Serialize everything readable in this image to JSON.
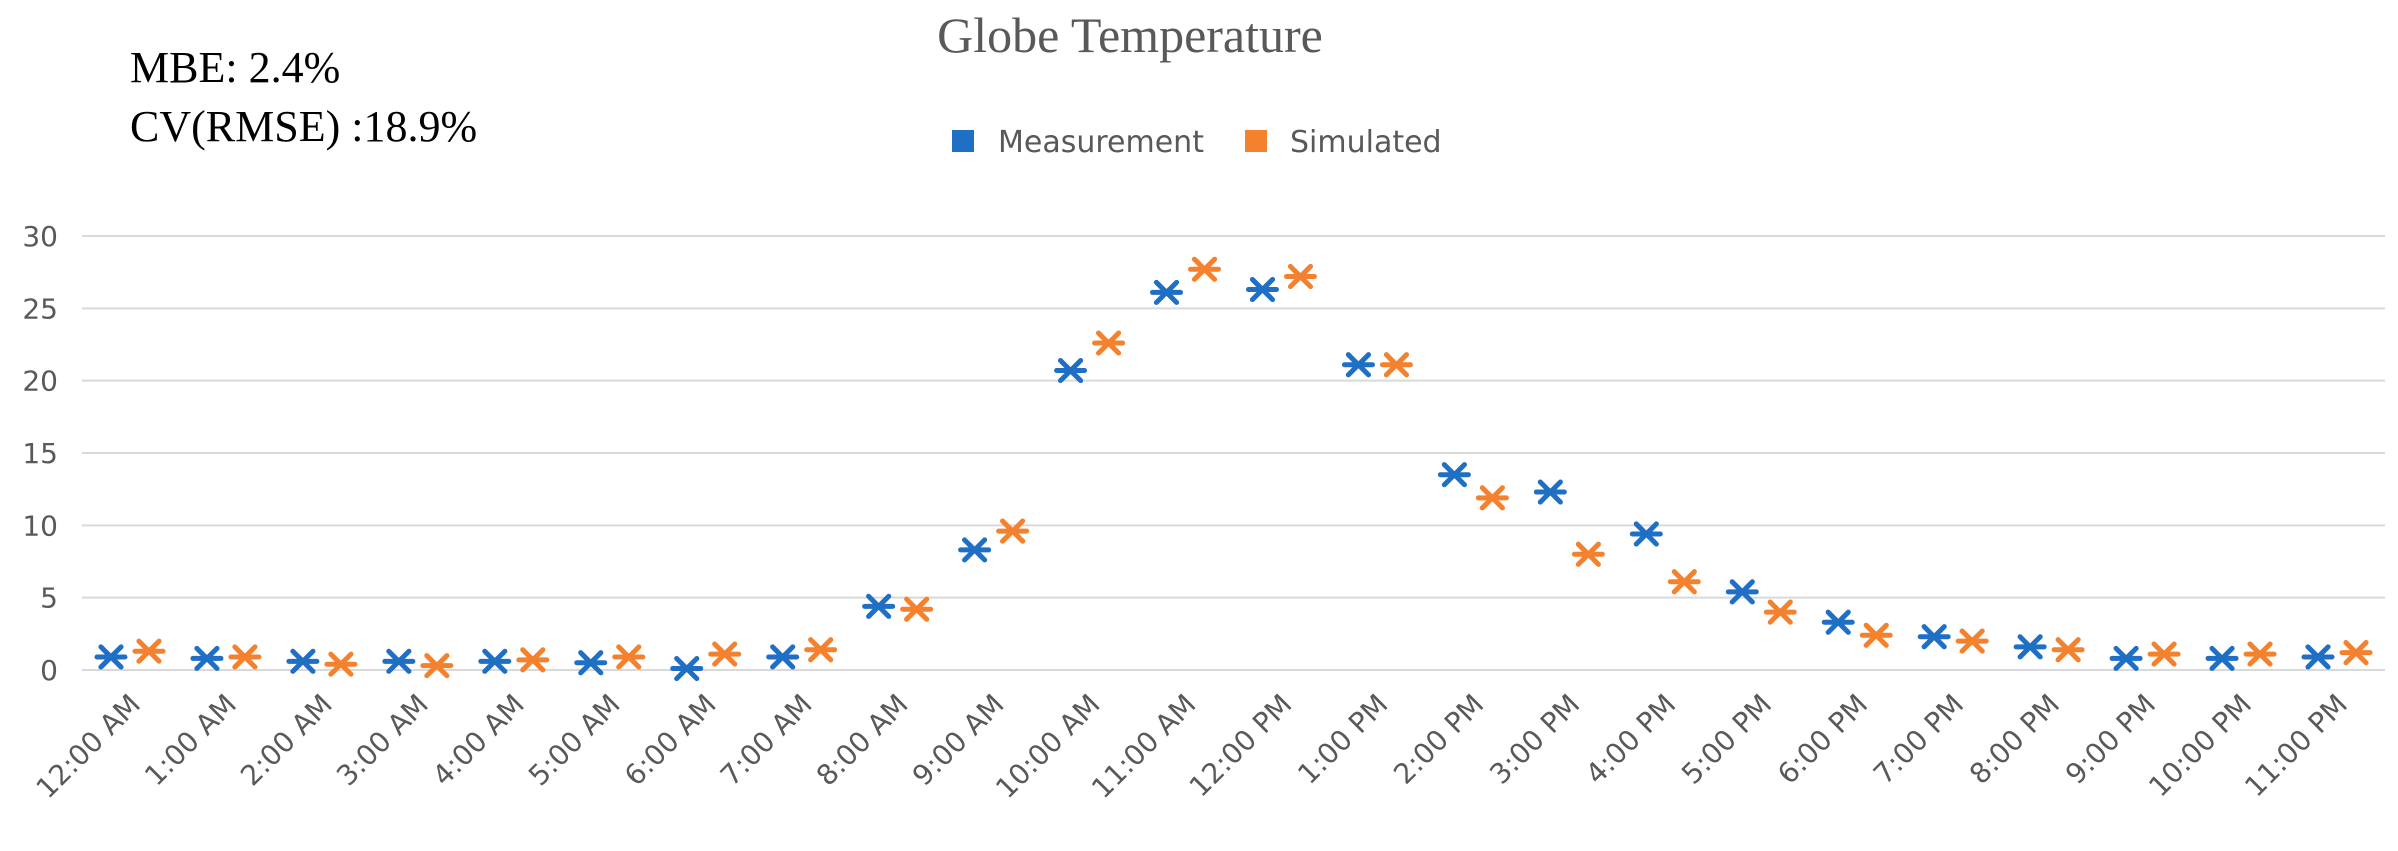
{
  "annotations": {
    "mbe": "MBE: 2.4%",
    "cv_rmse": "CV(RMSE) :18.9%"
  },
  "chart_data": {
    "type": "scatter",
    "title": "Globe Temperature",
    "xlabel": "",
    "ylabel": "",
    "ylim": [
      0,
      30
    ],
    "yticks": [
      0,
      5,
      10,
      15,
      20,
      25,
      30
    ],
    "grid": true,
    "legend_position": "top-center",
    "marker": "asterisk",
    "categories": [
      "12:00 AM",
      "1:00 AM",
      "2:00 AM",
      "3:00 AM",
      "4:00 AM",
      "5:00 AM",
      "6:00 AM",
      "7:00 AM",
      "8:00 AM",
      "9:00 AM",
      "10:00 AM",
      "11:00 AM",
      "12:00 PM",
      "1:00 PM",
      "2:00 PM",
      "3:00 PM",
      "4:00 PM",
      "5:00 PM",
      "6:00 PM",
      "7:00 PM",
      "8:00 PM",
      "9:00 PM",
      "10:00 PM",
      "11:00 PM"
    ],
    "series": [
      {
        "name": "Measurement",
        "color": "#1f6fc5",
        "values": [
          0.9,
          0.8,
          0.6,
          0.6,
          0.6,
          0.5,
          0.1,
          0.9,
          4.4,
          8.3,
          20.7,
          26.1,
          26.3,
          21.1,
          13.5,
          12.3,
          9.4,
          5.4,
          3.3,
          2.3,
          1.6,
          0.8,
          0.8,
          0.9
        ]
      },
      {
        "name": "Simulated",
        "color": "#f4812e",
        "values": [
          1.3,
          0.9,
          0.4,
          0.3,
          0.7,
          0.9,
          1.1,
          1.4,
          4.2,
          9.6,
          22.6,
          27.7,
          27.2,
          21.1,
          11.9,
          8.0,
          6.1,
          4.0,
          2.4,
          2.0,
          1.4,
          1.1,
          1.1,
          1.2
        ]
      }
    ]
  }
}
